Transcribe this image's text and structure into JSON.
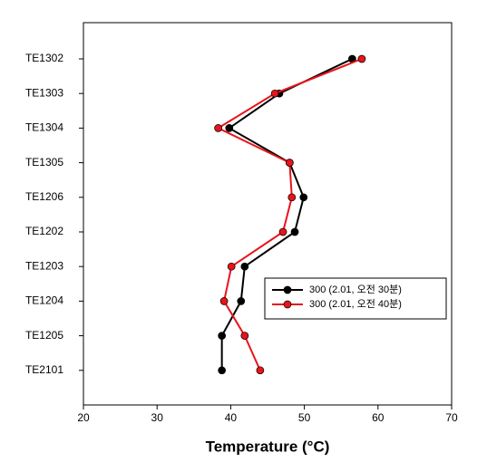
{
  "chart_data": {
    "type": "line",
    "orientation": "horizontal",
    "xlabel": "Temperature (°C)",
    "categories": [
      "TE1302",
      "TE1303",
      "TE1304",
      "TE1305",
      "TE1206",
      "TE1202",
      "TE1203",
      "TE1204",
      "TE1205",
      "TE2101"
    ],
    "series": [
      {
        "name": "300 (2.01, 오전 30분)",
        "color": "#000000",
        "values": [
          56.5,
          46.6,
          39.8,
          48.0,
          49.9,
          48.7,
          41.9,
          41.4,
          38.8,
          38.8
        ]
      },
      {
        "name": "300 (2.01, 오전 40분)",
        "color": "#e8141b",
        "values": [
          57.8,
          46.0,
          38.3,
          48.0,
          48.3,
          47.1,
          40.1,
          39.1,
          41.9,
          44.0
        ]
      }
    ],
    "xlim": [
      20,
      70
    ],
    "xticks": [
      20,
      30,
      40,
      50,
      60,
      70
    ]
  }
}
